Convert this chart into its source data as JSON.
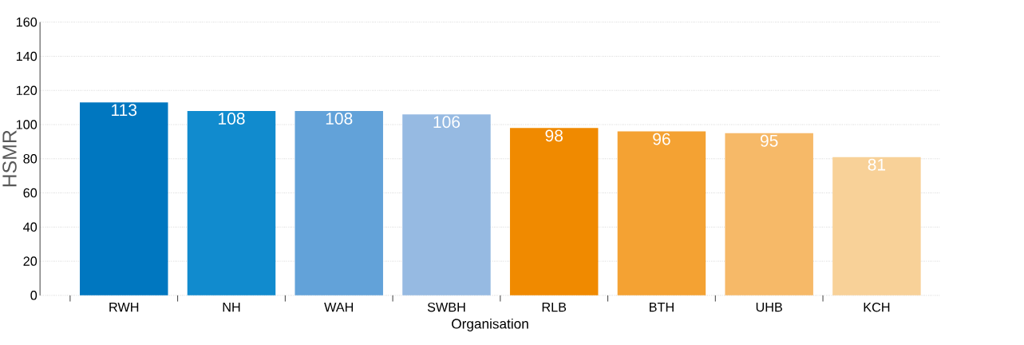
{
  "chart_data": {
    "type": "bar",
    "xlabel": "Organisation",
    "ylabel": "HSMR",
    "categories": [
      "RWH",
      "NH",
      "WAH",
      "SWBH",
      "RLB",
      "BTH",
      "UHB",
      "KCH"
    ],
    "values": [
      113,
      108,
      108,
      106,
      98,
      96,
      95,
      81
    ],
    "colors": [
      "#0077c0",
      "#118bce",
      "#62a2d9",
      "#96bae2",
      "#f08a00",
      "#f4a233",
      "#f6b968",
      "#f8d198"
    ],
    "data_labels": true,
    "ylim": [
      0,
      160
    ],
    "yticks": [
      0,
      20,
      40,
      60,
      80,
      100,
      120,
      140,
      160
    ],
    "grid": "y"
  }
}
